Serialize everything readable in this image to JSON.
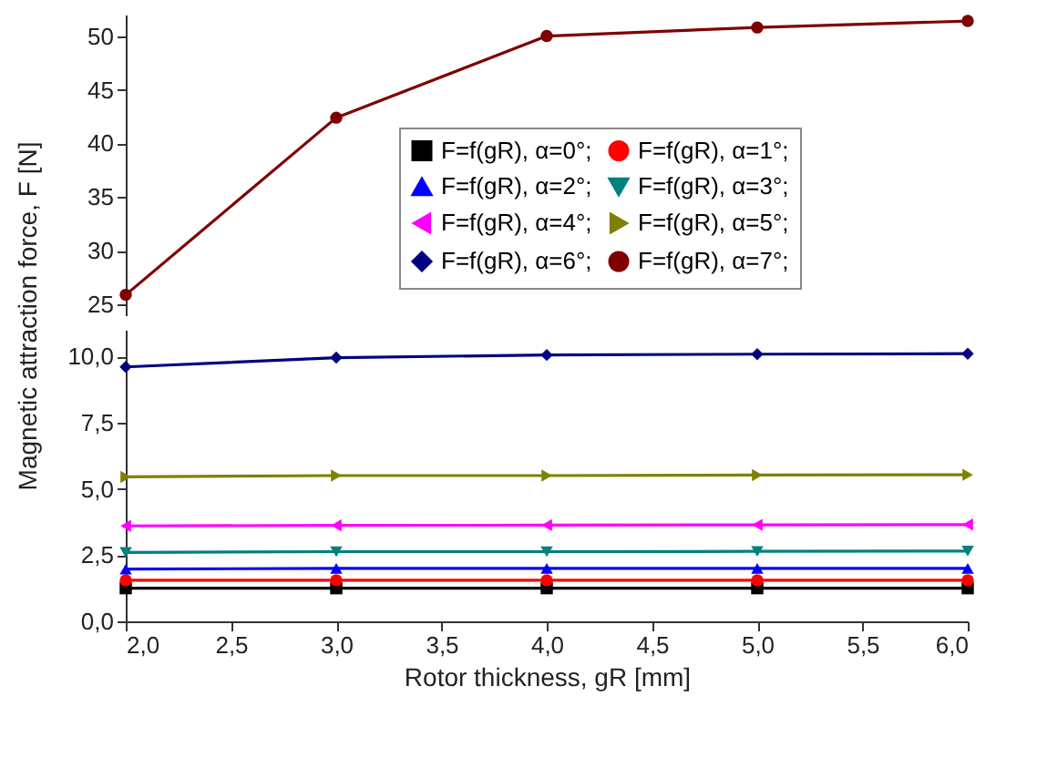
{
  "chart_data": [
    {
      "type": "line",
      "x": [
        2,
        3,
        4,
        5,
        6
      ],
      "xlim": [
        2,
        6
      ],
      "ylim": [
        24,
        52
      ],
      "yticks": [
        25,
        30,
        35,
        40,
        45,
        50
      ],
      "tick_labels": "y",
      "grid": false,
      "legend": "bottom right",
      "series": [
        {
          "name": "F=f(gR), α=7°;",
          "color": "#800000",
          "marker": "circle",
          "values": [
            25.9,
            42.4,
            50.0,
            50.8,
            51.4
          ]
        }
      ]
    },
    {
      "type": "line",
      "x": [
        2,
        3,
        4,
        5,
        6
      ],
      "xlim": [
        2,
        6
      ],
      "ylim": [
        0,
        11
      ],
      "xlabel": "Rotor thickness, gR [mm]",
      "ylabel": "Magnetic attraction force, F [N]",
      "grid": false,
      "legend": "top right",
      "xticks": [
        {
          "value": 2,
          "label": "2,0"
        },
        {
          "value": 2.5,
          "label": "2,5"
        },
        {
          "value": 3,
          "label": "3,0"
        },
        {
          "value": 3.5,
          "label": "3,5"
        },
        {
          "value": 4,
          "label": "4,0"
        },
        {
          "value": 4.5,
          "label": "4,5"
        },
        {
          "value": 5,
          "label": "5,0"
        },
        {
          "value": 5.5,
          "label": "5,5"
        },
        {
          "value": 6,
          "label": "6,0"
        }
      ],
      "yticks": [
        {
          "value": 0,
          "label": "0,0"
        },
        {
          "value": 2.5,
          "label": "2,5"
        },
        {
          "value": 5,
          "label": "5,0"
        },
        {
          "value": 7.5,
          "label": "7,5"
        },
        {
          "value": 10,
          "label": "10,0"
        }
      ],
      "series": [
        {
          "name": "F=f(gR), α=0°;",
          "color": "#000000",
          "marker": "square",
          "values": [
            1.25,
            1.25,
            1.25,
            1.25,
            1.25
          ]
        },
        {
          "name": "F=f(gR), α=1°;",
          "color": "#ff0000",
          "marker": "circle",
          "values": [
            1.55,
            1.55,
            1.55,
            1.55,
            1.55
          ]
        },
        {
          "name": "F=f(gR), α=2°;",
          "color": "#0000ff",
          "marker": "triangle",
          "values": [
            1.97,
            2.0,
            2.0,
            2.0,
            2.0
          ]
        },
        {
          "name": "F=f(gR), α=3°;",
          "color": "#008080",
          "marker": "triangle-down",
          "values": [
            2.6,
            2.63,
            2.63,
            2.64,
            2.65
          ]
        },
        {
          "name": "F=f(gR), α=4°;",
          "color": "#ff00ff",
          "marker": "triangle-left",
          "values": [
            3.6,
            3.62,
            3.63,
            3.64,
            3.65
          ]
        },
        {
          "name": "F=f(gR), α=5°;",
          "color": "#808000",
          "marker": "triangle-right",
          "values": [
            5.45,
            5.5,
            5.5,
            5.52,
            5.53
          ]
        },
        {
          "name": "F=f(gR), α=6°;",
          "color": "#000080",
          "marker": "diamond",
          "values": [
            9.6,
            9.95,
            10.05,
            10.08,
            10.1
          ]
        }
      ]
    }
  ]
}
